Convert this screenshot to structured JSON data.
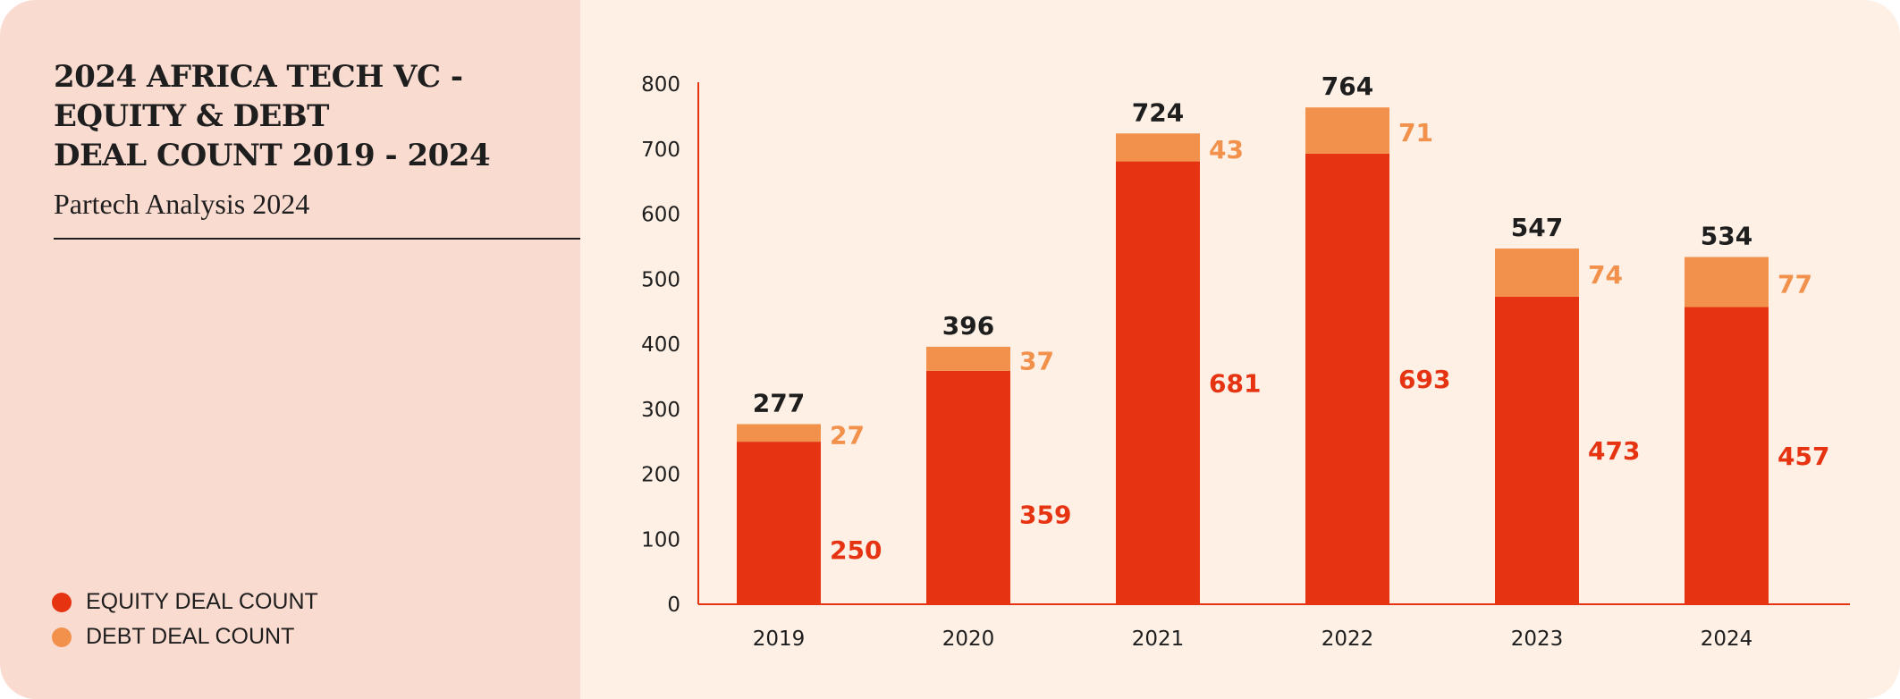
{
  "title_lines": [
    "2024 AFRICA TECH VC -",
    "EQUITY & DEBT",
    "DEAL COUNT 2019 - 2024"
  ],
  "subtitle": "Partech Analysis 2024",
  "legend": [
    {
      "label": "EQUITY DEAL COUNT",
      "color": "#E63312"
    },
    {
      "label": "DEBT DEAL COUNT",
      "color": "#F2914B"
    }
  ],
  "chart_data": {
    "type": "bar",
    "stacked": true,
    "title": "2024 AFRICA TECH VC - EQUITY & DEBT DEAL COUNT 2019 - 2024",
    "categories": [
      "2019",
      "2020",
      "2021",
      "2022",
      "2023",
      "2024"
    ],
    "series": [
      {
        "name": "EQUITY DEAL COUNT",
        "values": [
          250,
          359,
          681,
          693,
          473,
          457
        ],
        "color": "#E63312"
      },
      {
        "name": "DEBT DEAL COUNT",
        "values": [
          27,
          37,
          43,
          71,
          74,
          77
        ],
        "color": "#F2914B"
      }
    ],
    "totals": [
      277,
      396,
      724,
      764,
      547,
      534
    ],
    "ylim": [
      0,
      800
    ],
    "yticks": [
      0,
      100,
      200,
      300,
      400,
      500,
      600,
      700,
      800
    ],
    "xlabel": "",
    "ylabel": "",
    "grid": false,
    "legend_position": "bottom-left"
  }
}
